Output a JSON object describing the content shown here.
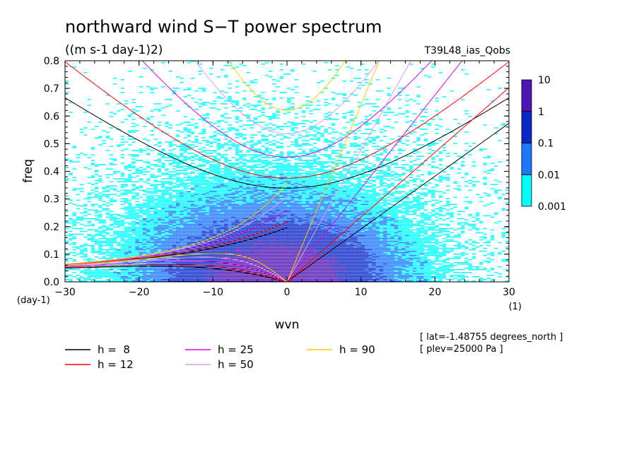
{
  "chart_data": {
    "type": "heatmap",
    "title": "northward wind S−T power spectrum",
    "units": "((m s-1 day-1)2)",
    "run_label": "T39L48_ias_Qobs",
    "xlabel": "wvn",
    "ylabel": "freq",
    "x_unit": "(1)",
    "y_unit": "(day-1)",
    "xlim": [
      -30,
      30
    ],
    "ylim": [
      0,
      0.8
    ],
    "x_ticks": [
      -30,
      -20,
      -10,
      0,
      10,
      20,
      30
    ],
    "y_ticks": [
      0.0,
      0.1,
      0.2,
      0.3,
      0.4,
      0.5,
      0.6,
      0.7,
      0.8
    ],
    "x_tick_labels": [
      "−30",
      "−20",
      "−10",
      "0",
      "10",
      "20",
      "30"
    ],
    "y_tick_labels": [
      "0.0",
      "0.1",
      "0.2",
      "0.3",
      "0.4",
      "0.5",
      "0.6",
      "0.7",
      "0.8"
    ],
    "colorbar": {
      "levels": [
        0.001,
        0.01,
        0.1,
        1,
        10
      ],
      "labels": [
        "0.001",
        "0.01",
        "0.1",
        "1",
        "10"
      ],
      "colors": [
        "#00ffff",
        "#1e78ff",
        "#0a28c8",
        "#5014b4"
      ]
    },
    "dispersion_curves": [
      {
        "h": 8,
        "label": "h =  8",
        "color": "#000000"
      },
      {
        "h": 12,
        "label": "h = 12",
        "color": "#ff0000"
      },
      {
        "h": 25,
        "label": "h = 25",
        "color": "#e600e6"
      },
      {
        "h": 50,
        "label": "h = 50",
        "color": "#e699e6"
      },
      {
        "h": 90,
        "label": "h = 90",
        "color": "#ffcc00"
      }
    ],
    "annotations": [
      "[ lat=-1.48755 degrees_north ]",
      "[ plev=25000 Pa ]"
    ]
  }
}
